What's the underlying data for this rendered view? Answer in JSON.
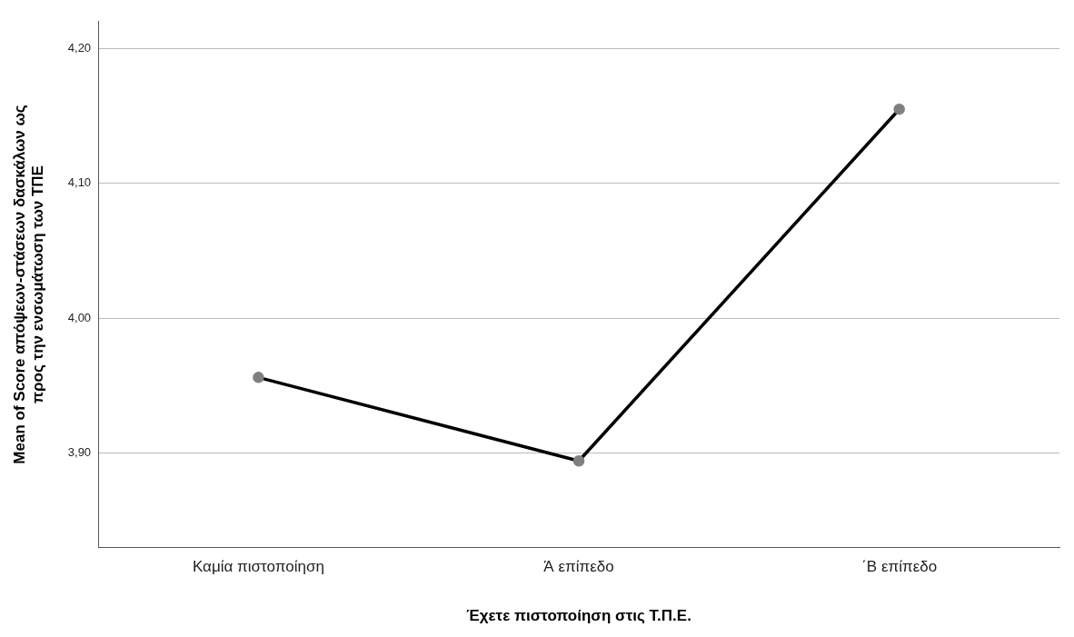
{
  "chart_data": {
    "type": "line",
    "xlabel": "Έχετε πιστοποίηση στις Τ.Π.Ε.",
    "ylabel": "Mean of Score απόψεων-στάσεων δασκάλων ως προς την ενσωμάτωση των ΤΠΕ",
    "categories": [
      "Καμία πιστοποίηση",
      "Ά επίπεδο",
      "΄Β επίπεδο"
    ],
    "series": [
      {
        "color": "#000000",
        "values": [
          3.956,
          3.894,
          4.155
        ]
      }
    ],
    "ylim": [
      3.83,
      4.22
    ],
    "yticks": [
      {
        "value": 3.9,
        "label": "3,90"
      },
      {
        "value": 4.0,
        "label": "4,00"
      },
      {
        "value": 4.1,
        "label": "4,10"
      },
      {
        "value": 4.2,
        "label": "4,20"
      }
    ],
    "grid": "y",
    "legend": false,
    "marker": "circle",
    "line_style": "solid"
  }
}
